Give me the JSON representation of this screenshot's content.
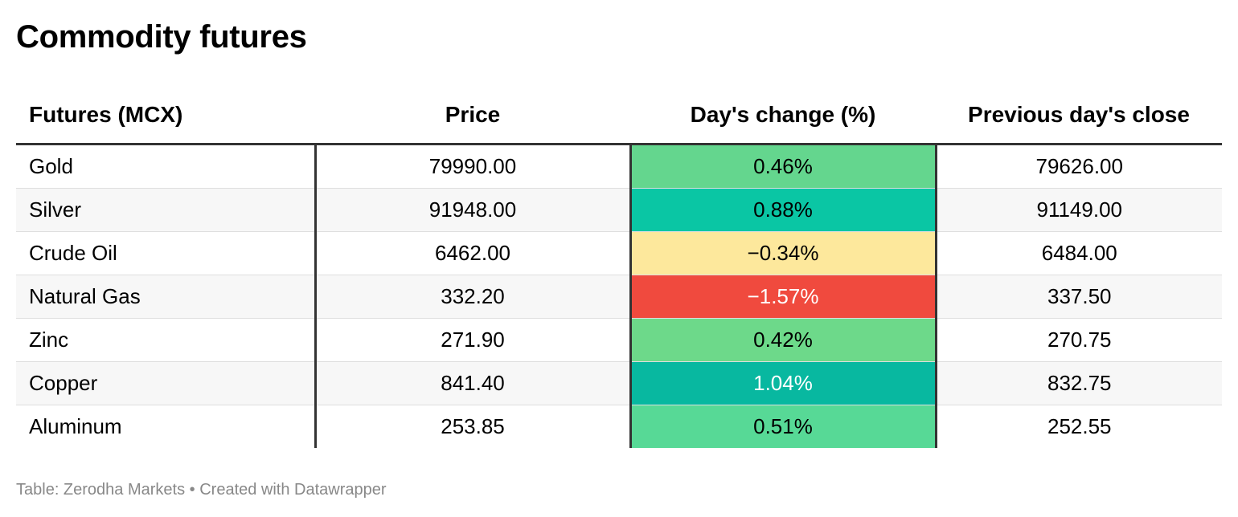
{
  "title": "Commodity futures",
  "source": "Table: Zerodha Markets • Created with Datawrapper",
  "chart_data": {
    "type": "table",
    "title": "Commodity futures",
    "columns": [
      "Futures (MCX)",
      "Price",
      "Day's change (%)",
      "Previous day's close"
    ],
    "rows": [
      {
        "name": "Gold",
        "price": "79990.00",
        "change": "0.46%",
        "prev_close": "79626.00",
        "change_color": "#64d68e",
        "change_text_color": "#000000"
      },
      {
        "name": "Silver",
        "price": "91948.00",
        "change": "0.88%",
        "prev_close": "91149.00",
        "change_color": "#0ac6a4",
        "change_text_color": "#000000"
      },
      {
        "name": "Crude Oil",
        "price": "6462.00",
        "change": "−0.34%",
        "prev_close": "6484.00",
        "change_color": "#fde89c",
        "change_text_color": "#000000"
      },
      {
        "name": "Natural Gas",
        "price": "332.20",
        "change": "−1.57%",
        "prev_close": "337.50",
        "change_color": "#f04a3e",
        "change_text_color": "#ffffff"
      },
      {
        "name": "Zinc",
        "price": "271.90",
        "change": "0.42%",
        "prev_close": "270.75",
        "change_color": "#6dd98a",
        "change_text_color": "#000000"
      },
      {
        "name": "Copper",
        "price": "841.40",
        "change": "1.04%",
        "prev_close": "832.75",
        "change_color": "#08b8a0",
        "change_text_color": "#ffffff"
      },
      {
        "name": "Aluminum",
        "price": "253.85",
        "change": "0.51%",
        "prev_close": "252.55",
        "change_color": "#57d996",
        "change_text_color": "#000000"
      }
    ]
  }
}
